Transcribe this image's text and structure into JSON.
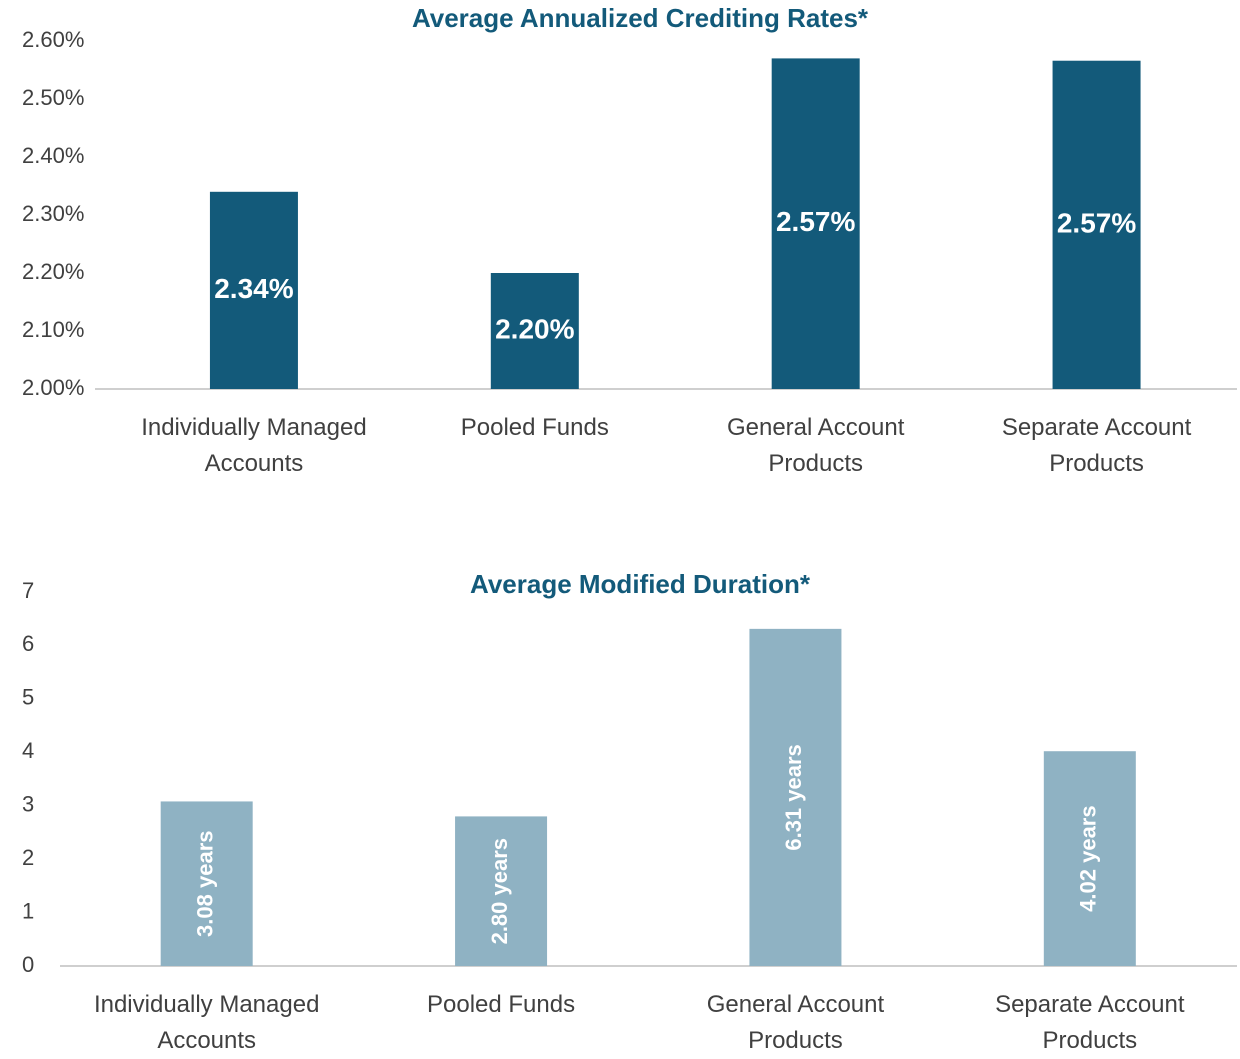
{
  "chart_data": [
    {
      "type": "bar",
      "title": "Average Annualized Crediting Rates*",
      "categories": [
        "Individually Managed Accounts",
        "Pooled Funds",
        "General Account Products",
        "Separate Account Products"
      ],
      "values": [
        2.34,
        2.2,
        2.57,
        2.566
      ],
      "value_labels": [
        "2.34%",
        "2.20%",
        "2.57%",
        "2.57%"
      ],
      "color": "#135a7a",
      "ylim": [
        2.0,
        2.6
      ],
      "yticks": [
        {
          "value": 2.0,
          "label": "2.00%"
        },
        {
          "value": 2.1,
          "label": "2.10%"
        },
        {
          "value": 2.2,
          "label": "2.20%"
        },
        {
          "value": 2.3,
          "label": "2.30%"
        },
        {
          "value": 2.4,
          "label": "2.40%"
        },
        {
          "value": 2.5,
          "label": "2.50%"
        },
        {
          "value": 2.6,
          "label": "2.60%"
        }
      ],
      "grid": false
    },
    {
      "type": "bar",
      "title": "Average Modified Duration*",
      "categories": [
        "Individually Managed Accounts",
        "Pooled Funds",
        "General Account Products",
        "Separate Account Products"
      ],
      "values": [
        3.08,
        2.8,
        6.31,
        4.02
      ],
      "value_labels": [
        "3.08 years",
        "2.80 years",
        "6.31 years",
        "4.02 years"
      ],
      "color": "#8fb2c3",
      "ylim": [
        0,
        7
      ],
      "yticks": [
        0,
        1,
        2,
        3,
        4,
        5,
        6,
        7
      ],
      "grid": false
    }
  ]
}
